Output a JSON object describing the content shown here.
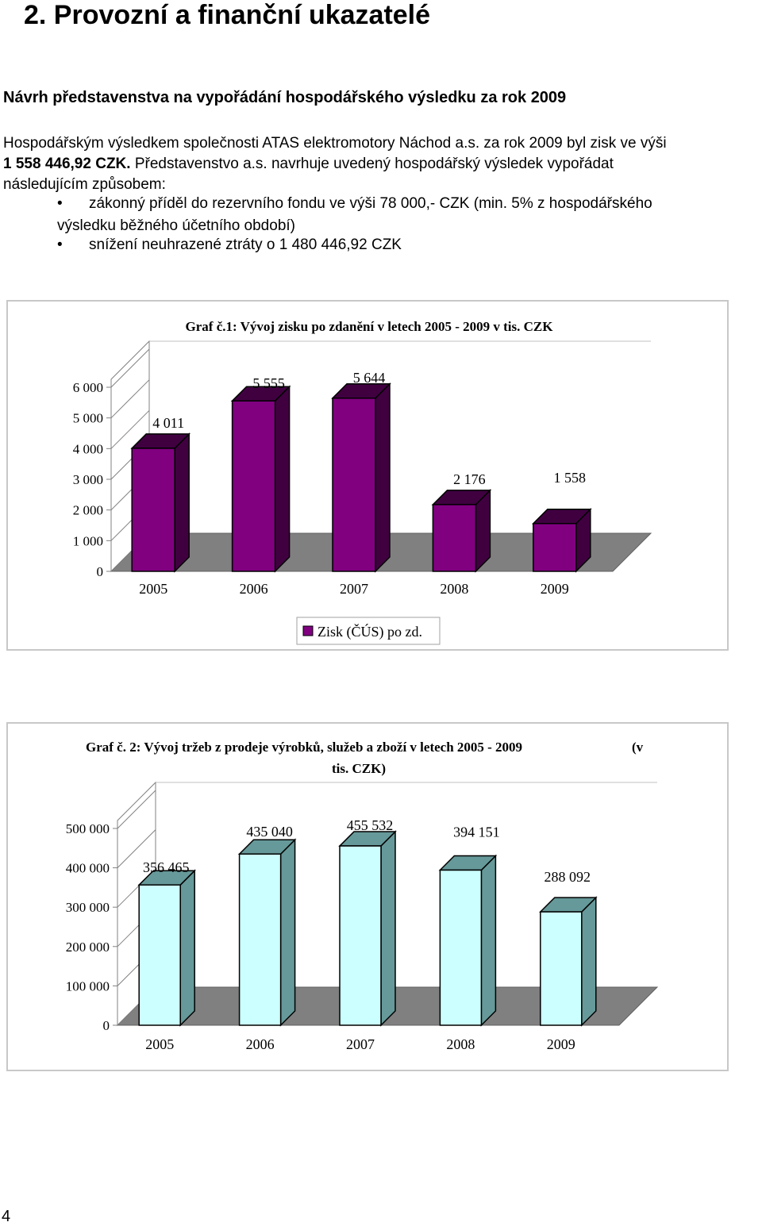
{
  "heading": "2.   Provozní a finanční ukazatelé",
  "subheading": "Návrh představenstva na vypořádání hospodářského výsledku za rok 2009",
  "paragraph": {
    "line1": "Hospodářským výsledkem společnosti ATAS elektromotory Náchod a.s. za rok 2009 byl zisk ve výši",
    "line2_amount": "1 558 446,92 CZK.",
    "line2_rest": "Představenstvo a.s. navrhuje uvedený hospodářský výsledek vypořádat",
    "line3": "následujícím způsobem:"
  },
  "bullets": [
    {
      "line1": "zákonný příděl do rezervního fondu ve výši 78 000,- CZK (min. 5% z hospodářského",
      "line2": "výsledku běžného účetního období)"
    },
    {
      "line1": "snížení neuhrazené ztráty o 1 480 446,92 CZK",
      "line2": ""
    }
  ],
  "colors": {
    "chart1_bar_front": "#800080",
    "chart1_bar_side": "#400040",
    "chart2_bar_front": "#ccffff",
    "chart2_bar_side": "#669999",
    "floor": "#808080"
  },
  "chart_data": [
    {
      "type": "bar",
      "title": "Graf č.1: Vývoj zisku po zdanění v letech 2005 - 2009 v tis. CZK",
      "categories": [
        "2005",
        "2006",
        "2007",
        "2008",
        "2009"
      ],
      "series": [
        {
          "name": "Zisk (ČÚS) po zd.",
          "values": [
            4011,
            5555,
            5644,
            2176,
            1558
          ]
        }
      ],
      "value_labels": [
        "4 011",
        "5 555",
        "5 644",
        "2 176",
        "1 558"
      ],
      "yticks": [
        "0",
        "1 000",
        "2 000",
        "3 000",
        "4 000",
        "5 000",
        "6 000"
      ],
      "ylim": [
        0,
        6000
      ],
      "legend": "bottom",
      "grid": false
    },
    {
      "type": "bar",
      "title_line1": "Graf č. 2: Vývoj tržeb z prodeje výrobků, služeb a zboží v letech 2005 - 2009",
      "title_tail": "(v",
      "title_line2": "tis. CZK)",
      "categories": [
        "2005",
        "2006",
        "2007",
        "2008",
        "2009"
      ],
      "series": [
        {
          "values": [
            356465,
            435040,
            455532,
            394151,
            288092
          ]
        }
      ],
      "value_labels": [
        "356 465",
        "435 040",
        "455 532",
        "394 151",
        "288 092"
      ],
      "yticks": [
        "0",
        "100 000",
        "200 000",
        "300 000",
        "400 000",
        "500 000"
      ],
      "ylim": [
        0,
        500000
      ],
      "grid": false
    }
  ],
  "page_number": "4"
}
